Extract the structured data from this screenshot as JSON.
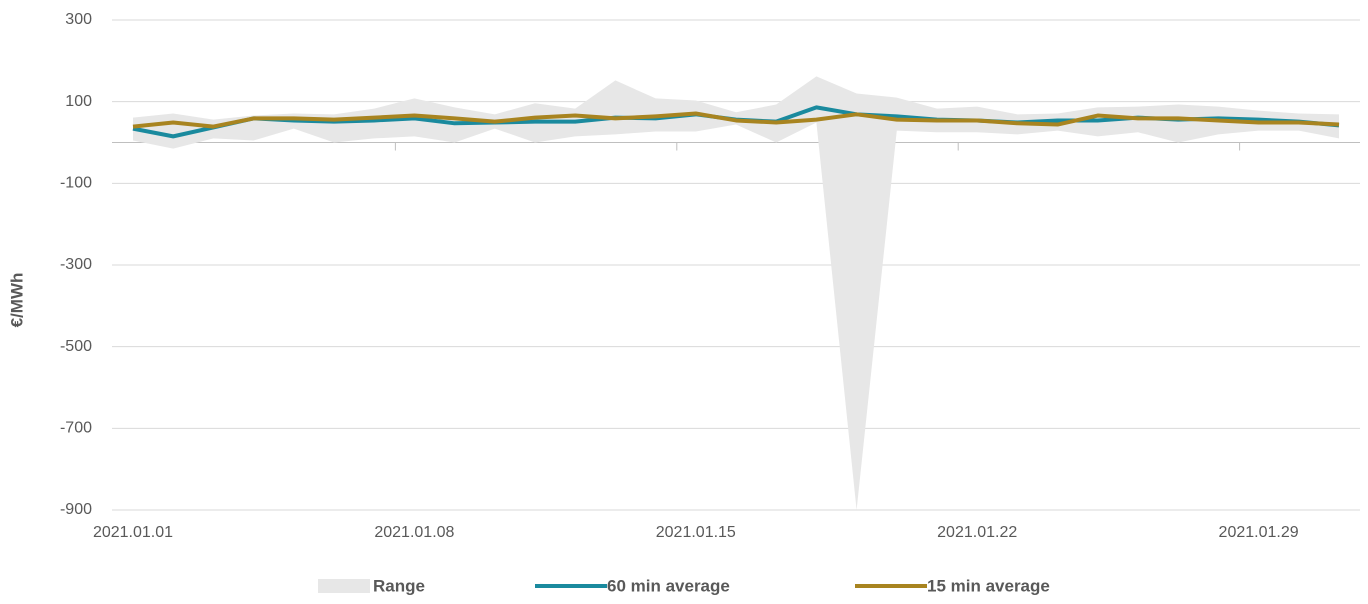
{
  "chart_data": {
    "type": "line",
    "y_label": "€/MWh",
    "categories": [
      "2021.01.01",
      null,
      null,
      null,
      null,
      null,
      null,
      "2021.01.08",
      null,
      null,
      null,
      null,
      null,
      null,
      "2021.01.15",
      null,
      null,
      null,
      null,
      null,
      null,
      "2021.01.22",
      null,
      null,
      null,
      null,
      null,
      null,
      "2021.01.29",
      null,
      null
    ],
    "series": [
      {
        "name": "Range",
        "color": "#e7e7e7",
        "high": [
          61,
          71,
          56,
          66,
          71,
          69,
          83,
          108,
          86,
          69,
          96,
          83,
          152,
          108,
          103,
          74,
          93,
          162,
          120,
          110,
          83,
          88,
          69,
          71,
          86,
          88,
          93,
          88,
          78,
          71,
          69
        ],
        "low": [
          5,
          -15,
          10,
          5,
          34,
          0,
          10,
          15,
          0,
          34,
          0,
          15,
          20,
          27,
          27,
          44,
          0,
          49,
          -900,
          29,
          25,
          25,
          20,
          29,
          15,
          25,
          0,
          20,
          29,
          29,
          10
        ]
      },
      {
        "name": "60 min average",
        "color": "#1a8a9e",
        "values": [
          34,
          15,
          37,
          59,
          54,
          51,
          54,
          59,
          47,
          49,
          51,
          51,
          61,
          59,
          69,
          56,
          51,
          86,
          69,
          64,
          56,
          54,
          49,
          54,
          54,
          61,
          56,
          59,
          56,
          51,
          42
        ]
      },
      {
        "name": "15 min average",
        "color": "#a88420",
        "values": [
          39,
          49,
          39,
          59,
          59,
          56,
          61,
          66,
          59,
          51,
          61,
          66,
          59,
          64,
          71,
          54,
          49,
          56,
          69,
          56,
          54,
          54,
          47,
          44,
          66,
          59,
          59,
          54,
          49,
          49,
          44
        ]
      }
    ],
    "ylim": [
      -900,
      300
    ],
    "yticks": [
      300,
      100,
      -100,
      -300,
      -500,
      -700,
      -900
    ],
    "grid": true,
    "legend": "bottom"
  }
}
